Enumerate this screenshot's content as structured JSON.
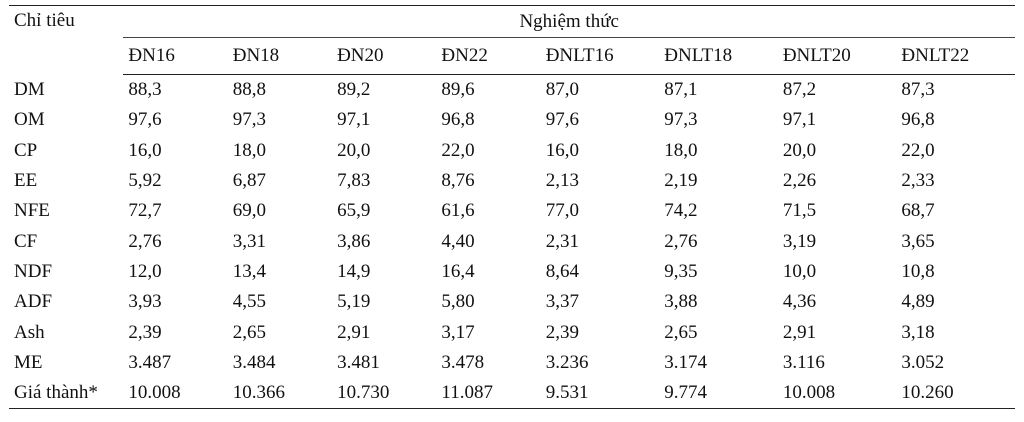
{
  "table": {
    "row_header": "Chỉ tiêu",
    "group_header": "Nghiệm thức",
    "columns": [
      "ĐN16",
      "ĐN18",
      "ĐN20",
      "ĐN22",
      "ĐNLT16",
      "ĐNLT18",
      "ĐNLT20",
      "ĐNLT22"
    ],
    "rows": [
      {
        "label": "DM",
        "values": [
          "88,3",
          "88,8",
          "89,2",
          "89,6",
          "87,0",
          "87,1",
          "87,2",
          "87,3"
        ]
      },
      {
        "label": "OM",
        "values": [
          "97,6",
          "97,3",
          "97,1",
          "96,8",
          "97,6",
          "97,3",
          "97,1",
          "96,8"
        ]
      },
      {
        "label": "CP",
        "values": [
          "16,0",
          "18,0",
          "20,0",
          "22,0",
          "16,0",
          "18,0",
          "20,0",
          "22,0"
        ]
      },
      {
        "label": "EE",
        "values": [
          "5,92",
          "6,87",
          "7,83",
          "8,76",
          "2,13",
          "2,19",
          "2,26",
          "2,33"
        ]
      },
      {
        "label": "NFE",
        "values": [
          "72,7",
          "69,0",
          "65,9",
          "61,6",
          "77,0",
          "74,2",
          "71,5",
          "68,7"
        ]
      },
      {
        "label": "CF",
        "values": [
          "2,76",
          "3,31",
          "3,86",
          "4,40",
          "2,31",
          "2,76",
          "3,19",
          "3,65"
        ]
      },
      {
        "label": "NDF",
        "values": [
          "12,0",
          "13,4",
          "14,9",
          "16,4",
          "8,64",
          "9,35",
          "10,0",
          "10,8"
        ]
      },
      {
        "label": "ADF",
        "values": [
          "3,93",
          "4,55",
          "5,19",
          "5,80",
          "3,37",
          "3,88",
          "4,36",
          "4,89"
        ]
      },
      {
        "label": "Ash",
        "values": [
          "2,39",
          "2,65",
          "2,91",
          "3,17",
          "2,39",
          "2,65",
          "2,91",
          "3,18"
        ]
      },
      {
        "label": "ME",
        "values": [
          "3.487",
          "3.484",
          "3.481",
          "3.478",
          "3.236",
          "3.174",
          "3.116",
          "3.052"
        ]
      },
      {
        "label": "Giá thành*",
        "values": [
          "10.008",
          "10.366",
          "10.730",
          "11.087",
          "9.531",
          "9.774",
          "10.008",
          "10.260"
        ]
      }
    ]
  }
}
